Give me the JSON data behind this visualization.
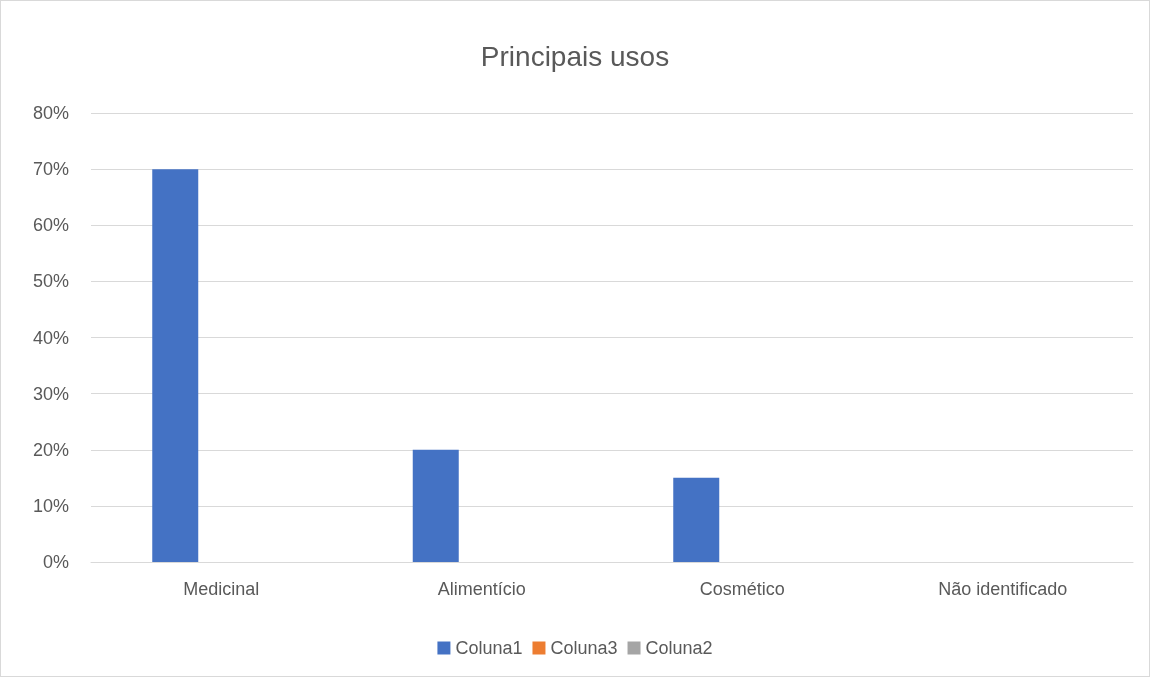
{
  "chart_data": {
    "type": "bar",
    "title": "Principais usos",
    "categories": [
      "Medicinal",
      "Alimentício",
      "Cosmético",
      "Não identificado"
    ],
    "series": [
      {
        "name": "Coluna1",
        "color": "#4472c4",
        "values": [
          70,
          20,
          15,
          null
        ]
      },
      {
        "name": "Coluna3",
        "color": "#ed7d31",
        "values": [
          null,
          null,
          null,
          null
        ]
      },
      {
        "name": "Coluna2",
        "color": "#a5a5a5",
        "values": [
          null,
          null,
          null,
          null
        ]
      }
    ],
    "ylim": [
      0,
      80
    ],
    "yticks": [
      {
        "value": 0,
        "label": "0%"
      },
      {
        "value": 10,
        "label": "10%"
      },
      {
        "value": 20,
        "label": "20%"
      },
      {
        "value": 30,
        "label": "30%"
      },
      {
        "value": 40,
        "label": "40%"
      },
      {
        "value": 50,
        "label": "50%"
      },
      {
        "value": 60,
        "label": "60%"
      },
      {
        "value": 70,
        "label": "70%"
      },
      {
        "value": 80,
        "label": "80%"
      }
    ],
    "grid": "y",
    "legend": "bottom"
  }
}
